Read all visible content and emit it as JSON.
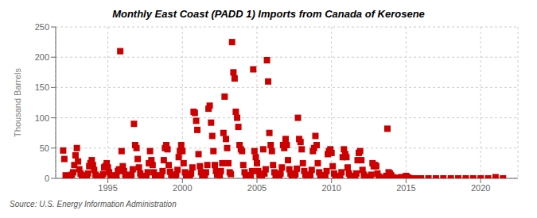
{
  "chart_data": {
    "type": "scatter",
    "title": "Monthly East Coast (PADD 1) Imports from Canada of Kerosene",
    "ylabel": "Thousand Barrels",
    "annotation": "Source: U.S. Energy Information Administration",
    "color": "#cc0000",
    "marker": "square",
    "grid": true,
    "xlim": [
      1991.5,
      2022.5
    ],
    "ylim": [
      0,
      250
    ],
    "xticks": [
      1995,
      2000,
      2005,
      2010,
      2015,
      2020
    ],
    "yticks": [
      0,
      50,
      100,
      150,
      200,
      250
    ],
    "x": [
      1992.0,
      1992.08,
      1992.17,
      1992.25,
      1992.33,
      1992.42,
      1992.5,
      1992.58,
      1992.67,
      1992.75,
      1992.83,
      1992.92,
      1993.0,
      1993.08,
      1993.17,
      1993.25,
      1993.33,
      1993.42,
      1993.5,
      1993.58,
      1993.67,
      1993.75,
      1993.83,
      1993.92,
      1994.0,
      1994.08,
      1994.17,
      1994.25,
      1994.33,
      1994.42,
      1994.5,
      1994.58,
      1994.67,
      1994.75,
      1994.83,
      1994.92,
      1995.0,
      1995.08,
      1995.17,
      1995.25,
      1995.33,
      1995.42,
      1995.5,
      1995.58,
      1995.67,
      1995.75,
      1995.83,
      1995.92,
      1996.0,
      1996.08,
      1996.17,
      1996.25,
      1996.33,
      1996.42,
      1996.5,
      1996.58,
      1996.67,
      1996.75,
      1996.83,
      1996.92,
      1997.0,
      1997.08,
      1997.17,
      1997.25,
      1997.33,
      1997.42,
      1997.5,
      1997.58,
      1997.67,
      1997.75,
      1997.83,
      1997.92,
      1998.0,
      1998.08,
      1998.17,
      1998.25,
      1998.33,
      1998.42,
      1998.5,
      1998.58,
      1998.67,
      1998.75,
      1998.83,
      1998.92,
      1999.0,
      1999.08,
      1999.17,
      1999.25,
      1999.33,
      1999.42,
      1999.5,
      1999.58,
      1999.67,
      1999.75,
      1999.83,
      1999.92,
      2000.0,
      2000.08,
      2000.17,
      2000.25,
      2000.33,
      2000.42,
      2000.5,
      2000.58,
      2000.67,
      2000.75,
      2000.83,
      2000.92,
      2001.0,
      2001.08,
      2001.17,
      2001.25,
      2001.33,
      2001.42,
      2001.5,
      2001.58,
      2001.67,
      2001.75,
      2001.83,
      2001.92,
      2002.0,
      2002.08,
      2002.17,
      2002.25,
      2002.33,
      2002.42,
      2002.5,
      2002.58,
      2002.67,
      2002.75,
      2002.83,
      2002.92,
      2003.0,
      2003.08,
      2003.17,
      2003.25,
      2003.33,
      2003.42,
      2003.5,
      2003.58,
      2003.67,
      2003.75,
      2003.83,
      2003.92,
      2004.0,
      2004.08,
      2004.17,
      2004.25,
      2004.33,
      2004.42,
      2004.5,
      2004.58,
      2004.67,
      2004.75,
      2004.83,
      2004.92,
      2005.0,
      2005.08,
      2005.17,
      2005.25,
      2005.33,
      2005.42,
      2005.5,
      2005.58,
      2005.67,
      2005.75,
      2005.83,
      2005.92,
      2006.0,
      2006.08,
      2006.17,
      2006.25,
      2006.33,
      2006.42,
      2006.5,
      2006.58,
      2006.67,
      2006.75,
      2006.83,
      2006.92,
      2007.0,
      2007.08,
      2007.17,
      2007.25,
      2007.33,
      2007.42,
      2007.5,
      2007.58,
      2007.67,
      2007.75,
      2007.83,
      2007.92,
      2008.0,
      2008.08,
      2008.17,
      2008.25,
      2008.33,
      2008.42,
      2008.5,
      2008.58,
      2008.67,
      2008.75,
      2008.83,
      2008.92,
      2009.0,
      2009.08,
      2009.17,
      2009.25,
      2009.33,
      2009.42,
      2009.5,
      2009.58,
      2009.67,
      2009.75,
      2009.83,
      2009.92,
      2010.0,
      2010.08,
      2010.17,
      2010.25,
      2010.33,
      2010.42,
      2010.5,
      2010.58,
      2010.67,
      2010.75,
      2010.83,
      2010.92,
      2011.0,
      2011.08,
      2011.17,
      2011.25,
      2011.33,
      2011.42,
      2011.5,
      2011.58,
      2011.67,
      2011.75,
      2011.83,
      2011.92,
      2012.0,
      2012.08,
      2012.17,
      2012.25,
      2012.33,
      2012.42,
      2012.5,
      2012.58,
      2012.67,
      2012.75,
      2012.83,
      2012.92,
      2013.0,
      2013.08,
      2013.17,
      2013.25,
      2013.33,
      2013.42,
      2013.5,
      2013.58,
      2013.67,
      2013.75,
      2013.83,
      2013.92,
      2014.0,
      2014.08,
      2014.17,
      2014.25,
      2014.33,
      2014.42,
      2014.5,
      2014.58,
      2014.67,
      2014.75,
      2014.83,
      2014.92,
      2015.0,
      2015.08,
      2015.17,
      2015.25,
      2015.33,
      2015.42,
      2015.5,
      2015.58,
      2015.67,
      2015.75,
      2015.83,
      2015.92,
      2016.0,
      2016.5,
      2017.0,
      2017.5,
      2018.0,
      2018.5,
      2019.0,
      2019.5,
      2020.0,
      2020.5,
      2021.0,
      2021.5
    ],
    "values": [
      46,
      32,
      5,
      3,
      2,
      4,
      4,
      6,
      10,
      22,
      38,
      50,
      28,
      15,
      8,
      4,
      3,
      5,
      2,
      4,
      8,
      20,
      25,
      30,
      22,
      14,
      6,
      3,
      2,
      3,
      1,
      3,
      7,
      18,
      20,
      25,
      18,
      10,
      5,
      2,
      2,
      4,
      2,
      5,
      12,
      15,
      210,
      45,
      20,
      12,
      6,
      3,
      2,
      4,
      2,
      6,
      15,
      90,
      55,
      50,
      32,
      18,
      8,
      4,
      2,
      3,
      1,
      4,
      10,
      25,
      45,
      30,
      22,
      10,
      5,
      2,
      2,
      3,
      2,
      5,
      12,
      30,
      50,
      55,
      48,
      22,
      11,
      6,
      3,
      4,
      2,
      6,
      14,
      35,
      45,
      55,
      45,
      25,
      10,
      5,
      4,
      6,
      3,
      8,
      18,
      110,
      108,
      95,
      80,
      40,
      20,
      10,
      5,
      8,
      4,
      10,
      22,
      115,
      120,
      92,
      70,
      45,
      22,
      12,
      6,
      8,
      5,
      12,
      25,
      75,
      135,
      65,
      50,
      25,
      10,
      7,
      225,
      175,
      165,
      110,
      100,
      85,
      55,
      48,
      45,
      22,
      10,
      5,
      3,
      5,
      2,
      5,
      12,
      180,
      45,
      35,
      25,
      12,
      6,
      3,
      5,
      48,
      8,
      15,
      195,
      160,
      75,
      55,
      45,
      22,
      10,
      5,
      3,
      7,
      3,
      8,
      18,
      55,
      50,
      65,
      55,
      30,
      15,
      8,
      4,
      6,
      3,
      7,
      16,
      100,
      65,
      60,
      48,
      25,
      12,
      6,
      3,
      5,
      2,
      6,
      14,
      45,
      50,
      70,
      55,
      25,
      10,
      5,
      3,
      5,
      2,
      5,
      12,
      40,
      45,
      48,
      42,
      20,
      8,
      4,
      2,
      4,
      2,
      4,
      10,
      35,
      48,
      40,
      35,
      18,
      8,
      4,
      2,
      3,
      1,
      3,
      8,
      30,
      42,
      45,
      30,
      14,
      6,
      3,
      1,
      2,
      1,
      2,
      6,
      25,
      20,
      22,
      20,
      8,
      3,
      1,
      1,
      1,
      0,
      1,
      4,
      82,
      10,
      8,
      5,
      2,
      1,
      1,
      0,
      0,
      0,
      0,
      2,
      0,
      1,
      2,
      4,
      2,
      1,
      0,
      0,
      0,
      0,
      0,
      0,
      0,
      0,
      0,
      0,
      0,
      0,
      0,
      0,
      0,
      0,
      0,
      0,
      0,
      2,
      0
    ]
  }
}
